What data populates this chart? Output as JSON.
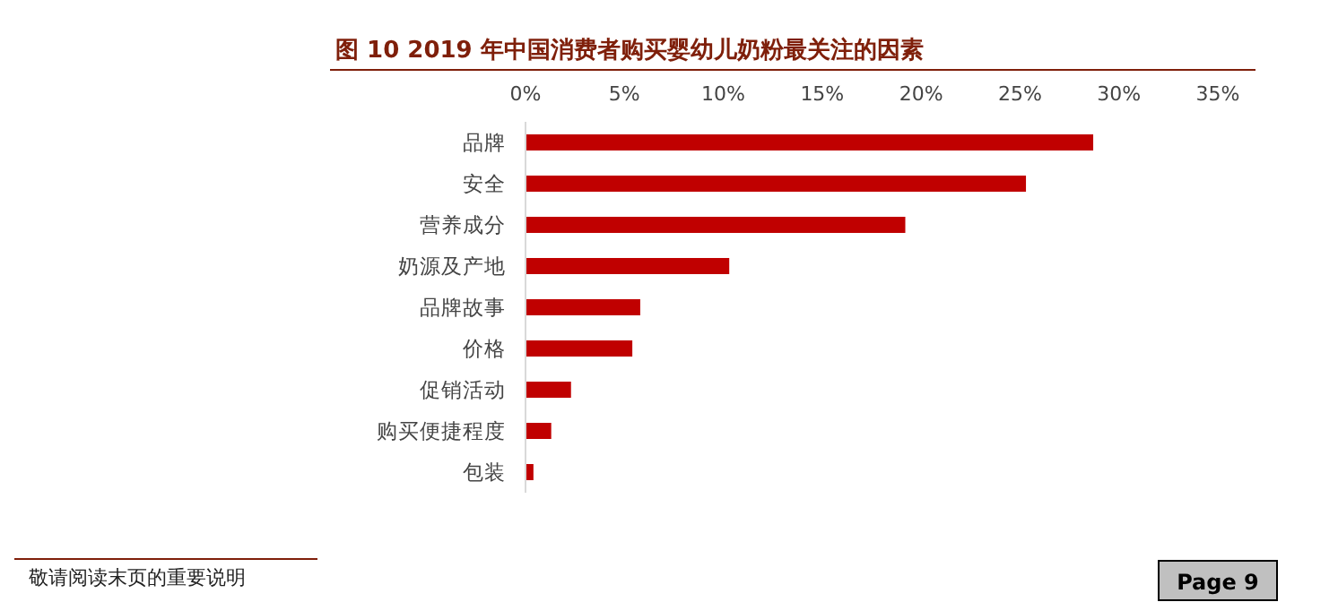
{
  "chart_data": {
    "type": "bar",
    "orientation": "horizontal",
    "title": "图 10 2019 年中国消费者购买婴幼儿奶粉最关注的因素",
    "categories": [
      "品牌",
      "安全",
      "营养成分",
      "奶源及产地",
      "品牌故事",
      "价格",
      "促销活动",
      "购买便捷程度",
      "包装"
    ],
    "values": [
      28.7,
      25.3,
      19.2,
      10.3,
      5.8,
      5.4,
      2.3,
      1.3,
      0.4
    ],
    "color": "#c00000",
    "xlim": [
      0,
      35
    ],
    "xticks": [
      {
        "value": 0,
        "label": "0%"
      },
      {
        "value": 5,
        "label": "5%"
      },
      {
        "value": 10,
        "label": "10%"
      },
      {
        "value": 15,
        "label": "15%"
      },
      {
        "value": 20,
        "label": "20%"
      },
      {
        "value": 25,
        "label": "25%"
      },
      {
        "value": 30,
        "label": "30%"
      },
      {
        "value": 35,
        "label": "35%"
      }
    ],
    "grid": false,
    "annotations": [
      "敬请阅读末页的重要说明",
      "Page 9"
    ]
  }
}
